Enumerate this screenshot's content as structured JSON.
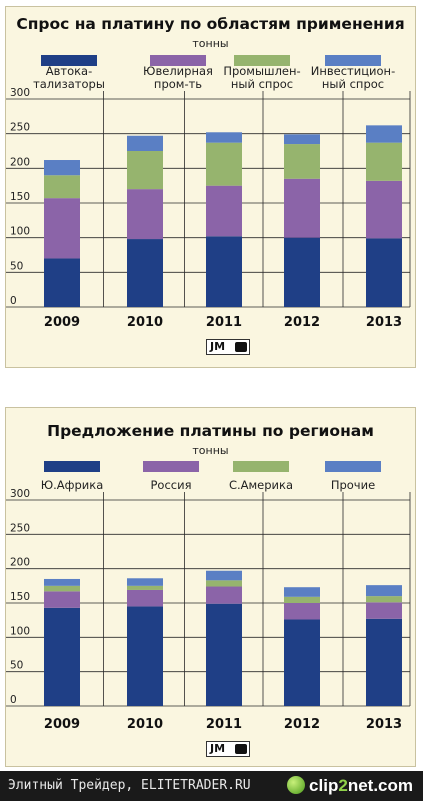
{
  "chart_data": [
    {
      "type": "bar",
      "stacked": true,
      "title": "Спрос на платину по областям применения",
      "subtitle": "тонны",
      "categories": [
        "2009",
        "2010",
        "2011",
        "2012",
        "2013"
      ],
      "series": [
        {
          "name": "Автока-\nтализаторы",
          "color": "#1f3f86",
          "values": [
            70,
            98,
            102,
            100,
            99
          ]
        },
        {
          "name": "Ювелирная\nпром-ть",
          "color": "#8b64a8",
          "values": [
            87,
            72,
            73,
            85,
            83
          ]
        },
        {
          "name": "Промышлен-\nный спрос",
          "color": "#96b46e",
          "values": [
            33,
            55,
            62,
            50,
            55
          ]
        },
        {
          "name": "Инвестицион-\nный спрос",
          "color": "#5a7fc4",
          "values": [
            22,
            22,
            15,
            14,
            25
          ]
        }
      ],
      "yticks": [
        0,
        50,
        100,
        150,
        200,
        250,
        300
      ],
      "ylim": [
        0,
        300
      ],
      "grid": true,
      "legend_position": "top",
      "source_logo": "JM"
    },
    {
      "type": "bar",
      "stacked": true,
      "title": "Предложение платины по регионам",
      "subtitle": "тонны",
      "categories": [
        "2009",
        "2010",
        "2011",
        "2012",
        "2013"
      ],
      "series": [
        {
          "name": "Ю.Африка",
          "color": "#1f3f86",
          "values": [
            143,
            145,
            149,
            126,
            127
          ]
        },
        {
          "name": "Россия",
          "color": "#8b64a8",
          "values": [
            24,
            24,
            25,
            24,
            24
          ]
        },
        {
          "name": "С.Америка",
          "color": "#96b46e",
          "values": [
            8,
            6,
            9,
            9,
            9
          ]
        },
        {
          "name": "Прочие",
          "color": "#5a7fc4",
          "values": [
            10,
            11,
            14,
            14,
            16
          ]
        }
      ],
      "yticks": [
        0,
        50,
        100,
        150,
        200,
        250,
        300
      ],
      "ylim": [
        0,
        300
      ],
      "grid": true,
      "legend_position": "top",
      "source_logo": "JM"
    }
  ],
  "footer": {
    "text": "Элитный Трейдер, ELITETRADER.RU",
    "brand_left": "clip",
    "brand_mid": "2",
    "brand_right": "net.com"
  }
}
